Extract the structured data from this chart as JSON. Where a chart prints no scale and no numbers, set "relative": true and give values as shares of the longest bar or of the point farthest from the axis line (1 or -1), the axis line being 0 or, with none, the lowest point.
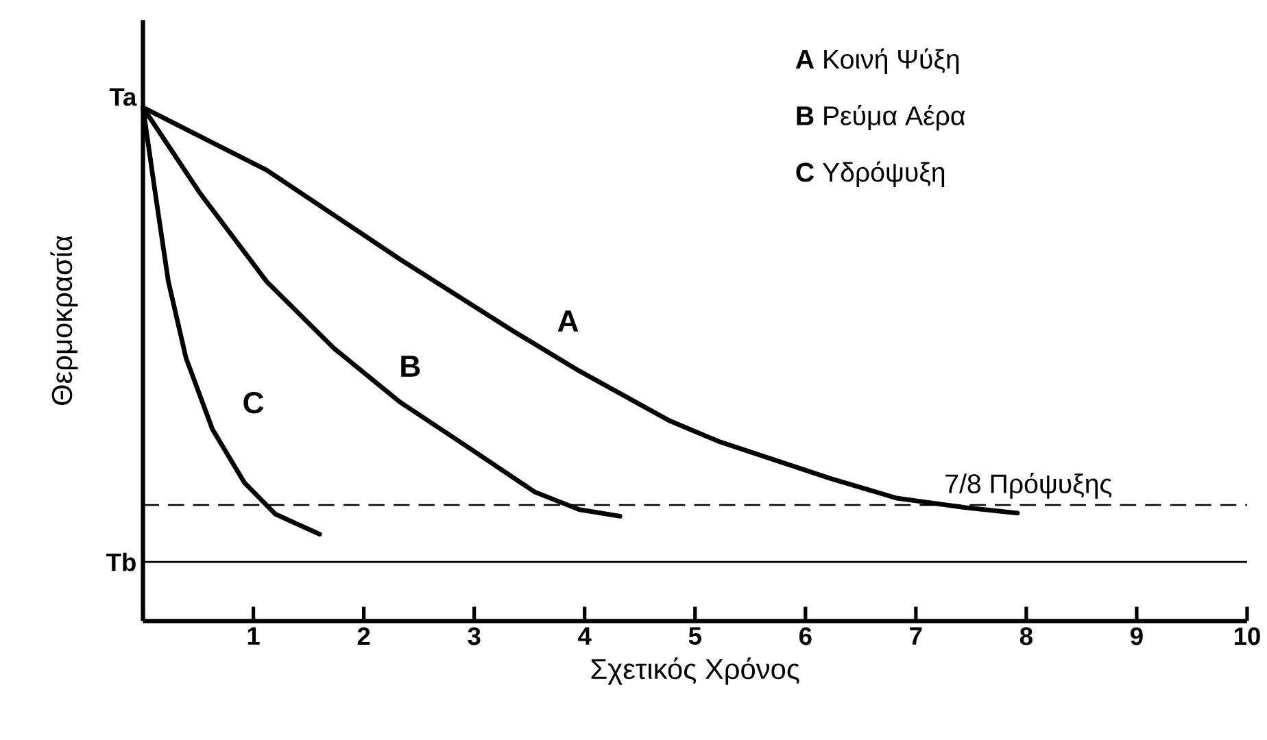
{
  "chart_data": {
    "type": "line",
    "xlabel": "Σχετικός Χρόνος",
    "ylabel": "Θερμοκρασία",
    "relative": true,
    "xlim": [
      0,
      10
    ],
    "xticks": [
      1,
      2,
      3,
      4,
      5,
      6,
      7,
      8,
      9,
      10
    ],
    "line_style": "solid",
    "series": [
      {
        "name": "A",
        "color": "#000000",
        "x": [
          0,
          1.12,
          2.33,
          3.35,
          3.95,
          4.76,
          5.21,
          6.22,
          6.83,
          7.44,
          7.92
        ],
        "values": [
          1.0,
          0.878,
          0.704,
          0.565,
          0.487,
          0.391,
          0.35,
          0.278,
          0.239,
          0.221,
          0.21
        ]
      },
      {
        "name": "B",
        "color": "#000000",
        "x": [
          0,
          0.51,
          1.12,
          1.73,
          2.33,
          2.94,
          3.55,
          3.95,
          4.32
        ],
        "values": [
          1.0,
          0.835,
          0.661,
          0.531,
          0.426,
          0.339,
          0.251,
          0.217,
          0.204
        ]
      },
      {
        "name": "C",
        "color": "#000000",
        "x": [
          0,
          0.11,
          0.23,
          0.39,
          0.63,
          0.92,
          1.2,
          1.6
        ],
        "values": [
          1.0,
          0.835,
          0.661,
          0.512,
          0.373,
          0.269,
          0.208,
          0.169
        ]
      }
    ],
    "ref_lines": [
      {
        "axis": "y",
        "value": 0.226,
        "label": "7/8 Πρόψυξης",
        "line_style": "dashed",
        "color": "#000000"
      },
      {
        "axis": "y",
        "value": 0.115,
        "label": "Tb",
        "line_style": "solid",
        "color": "#000000"
      }
    ],
    "annotations": [
      "**A**  Κοινή Ψύξη",
      "**B**  Ρεύμα Αέρα",
      "**C**  Υδρόψυξη",
      "Ta"
    ]
  }
}
